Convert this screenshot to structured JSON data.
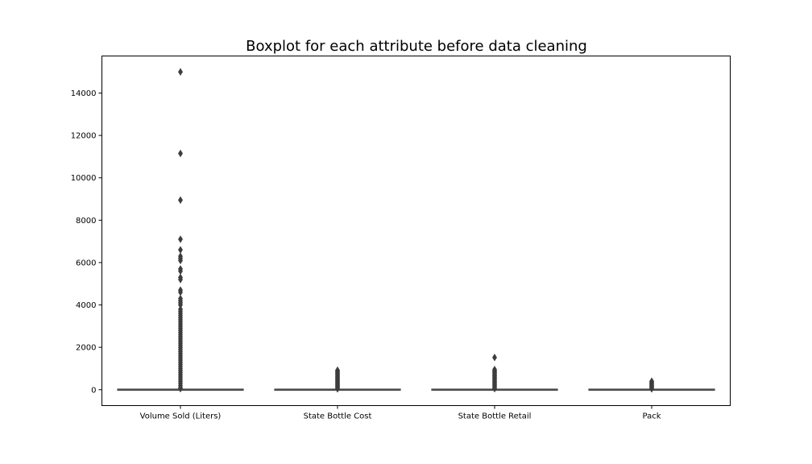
{
  "chart_data": {
    "type": "boxplot",
    "title": "Boxplot for each attribute before data cleaning",
    "xlabel": "",
    "ylabel": "",
    "ylim": [
      -750,
      15750
    ],
    "yticks": [
      0,
      2000,
      4000,
      6000,
      8000,
      10000,
      12000,
      14000
    ],
    "grid": false,
    "categories": [
      "Volume Sold (Liters)",
      "State Bottle Cost",
      "State Bottle Retail",
      "Pack"
    ],
    "box_color": "#4c4c4c",
    "series": [
      {
        "category": "Volume Sold (Liters)",
        "min": 0,
        "q1": 0,
        "median": 0,
        "q3": 0,
        "max": 0,
        "outliers": [
          15000,
          11150,
          8950,
          7100,
          6600,
          6300,
          6200,
          6100,
          5700,
          5600,
          5300,
          5200,
          4700,
          4600,
          4300,
          4200,
          4100,
          4000,
          3800,
          3700,
          3600,
          3500,
          3400,
          3300,
          3200,
          3100,
          3000,
          2900,
          2800,
          2700,
          2600,
          2500,
          2400,
          2300,
          2200,
          2100,
          2000,
          1900,
          1800,
          1700,
          1600,
          1500,
          1400,
          1300,
          1200,
          1100,
          1000,
          900,
          800,
          700,
          600,
          500,
          400,
          300,
          200,
          100,
          50
        ]
      },
      {
        "category": "State Bottle Cost",
        "min": 0,
        "q1": 0,
        "median": 0,
        "q3": 0,
        "max": 0,
        "outliers": [
          920,
          880,
          840,
          800,
          760,
          720,
          680,
          640,
          600,
          560,
          520,
          480,
          440,
          400,
          360,
          320,
          280,
          240,
          200,
          160,
          120,
          80,
          40
        ]
      },
      {
        "category": "State Bottle Retail",
        "min": 0,
        "q1": 0,
        "median": 0,
        "q3": 0,
        "max": 0,
        "outliers": [
          1520,
          950,
          900,
          850,
          800,
          750,
          700,
          650,
          600,
          550,
          500,
          450,
          400,
          350,
          300,
          250,
          200,
          150,
          100,
          50
        ]
      },
      {
        "category": "Pack",
        "min": 0,
        "q1": 0,
        "median": 0,
        "q3": 0,
        "max": 0,
        "outliers": [
          400,
          360,
          320,
          280,
          240,
          200,
          160,
          120,
          80,
          40
        ]
      }
    ]
  }
}
